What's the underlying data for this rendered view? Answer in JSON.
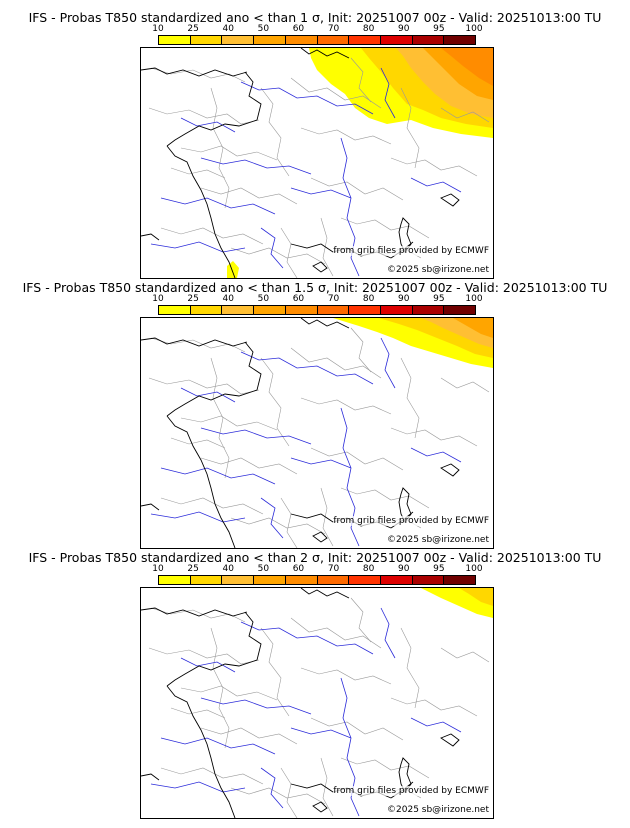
{
  "scale": {
    "labels": [
      "10",
      "25",
      "40",
      "50",
      "60",
      "70",
      "80",
      "90",
      "95",
      "100"
    ],
    "colors": [
      "#ffff00",
      "#ffd700",
      "#ffbf33",
      "#ffa500",
      "#ff8c00",
      "#ff6a00",
      "#ff3300",
      "#dd0000",
      "#aa0000",
      "#700000"
    ]
  },
  "credits": {
    "source": "from grib files provided by ECMWF",
    "copyright": "©2025 sb@irizone.net"
  },
  "colors": {
    "coast": "#000000",
    "rivers": "#2b2bd9",
    "borders": "#9a9a9a"
  },
  "panels": [
    {
      "title": "IFS - Probas T850  standardized ano < than 1 σ, Init: 20251007 00z - Valid: 20251013:00 TU",
      "threshold_sigma": 1
    },
    {
      "title": "IFS - Probas T850  standardized ano < than 1.5 σ, Init: 20251007 00z - Valid: 20251013:00 TU",
      "threshold_sigma": 1.5
    },
    {
      "title": "IFS - Probas T850  standardized ano < than 2 σ, Init: 20251007 00z - Valid: 20251013:00 TU",
      "threshold_sigma": 2
    }
  ]
}
